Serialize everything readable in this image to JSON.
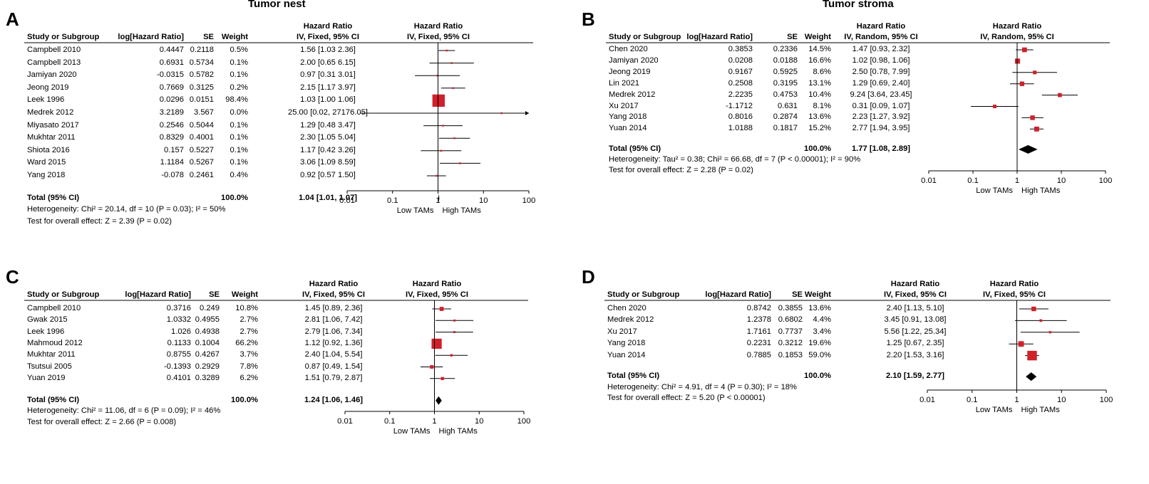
{
  "chart_data": [
    {
      "type": "forest",
      "letter": "A",
      "title": "Tumor nest",
      "headers": {
        "study": "Study or Subgroup",
        "loghr": "log[Hazard Ratio]",
        "se": "SE",
        "weight": "Weight",
        "hr_top": "Hazard Ratio",
        "hr_method": "IV, Fixed, 95% CI",
        "plot_top": "Hazard Ratio",
        "plot_method": "IV, Fixed, 95% CI"
      },
      "studies": [
        {
          "name": "Campbell 2010",
          "loghr": "0.4447",
          "se": "0.2118",
          "weight": "0.5%",
          "ci_text": "1.56 [1.03  2.36]",
          "hr": 1.56,
          "lo": 1.03,
          "hi": 2.36,
          "w": 0.5
        },
        {
          "name": "Campbell 2013",
          "loghr": "0.6931",
          "se": "0.5734",
          "weight": "0.1%",
          "ci_text": "2.00 [0.65  6.15]",
          "hr": 2.0,
          "lo": 0.65,
          "hi": 6.15,
          "w": 0.1
        },
        {
          "name": "Jamiyan 2020",
          "loghr": "-0.0315",
          "se": "0.5782",
          "weight": "0.1%",
          "ci_text": "0.97 [0.31  3.01]",
          "hr": 0.97,
          "lo": 0.31,
          "hi": 3.01,
          "w": 0.1
        },
        {
          "name": "Jeong 2019",
          "loghr": "0.7669",
          "se": "0.3125",
          "weight": "0.2%",
          "ci_text": "2.15 [1.17  3.97]",
          "hr": 2.15,
          "lo": 1.17,
          "hi": 3.97,
          "w": 0.2
        },
        {
          "name": "Leek 1996",
          "loghr": "0.0296",
          "se": "0.0151",
          "weight": "98.4%",
          "ci_text": "1.03 [1.00  1.06]",
          "hr": 1.03,
          "lo": 1.0,
          "hi": 1.06,
          "w": 98.4
        },
        {
          "name": "Medrek 2012",
          "loghr": "3.2189",
          "se": "3.567",
          "weight": "0.0%",
          "ci_text": "25.00 [0.02, 27176.05]",
          "hr": 25.0,
          "lo": 0.02,
          "hi": 27176.05,
          "w": 0.0
        },
        {
          "name": "Miyasato 2017",
          "loghr": "0.2546",
          "se": "0.5044",
          "weight": "0.1%",
          "ci_text": "1.29 [0.48  3.47]",
          "hr": 1.29,
          "lo": 0.48,
          "hi": 3.47,
          "w": 0.1
        },
        {
          "name": "Mukhtar 2011",
          "loghr": "0.8329",
          "se": "0.4001",
          "weight": "0.1%",
          "ci_text": "2.30 [1.05  5.04]",
          "hr": 2.3,
          "lo": 1.05,
          "hi": 5.04,
          "w": 0.1
        },
        {
          "name": "Shiota 2016",
          "loghr": "0.157",
          "se": "0.5227",
          "weight": "0.1%",
          "ci_text": "1.17 [0.42  3.26]",
          "hr": 1.17,
          "lo": 0.42,
          "hi": 3.26,
          "w": 0.1
        },
        {
          "name": "Ward 2015",
          "loghr": "1.1184",
          "se": "0.5267",
          "weight": "0.1%",
          "ci_text": "3.06 [1.09  8.59]",
          "hr": 3.06,
          "lo": 1.09,
          "hi": 8.59,
          "w": 0.1
        },
        {
          "name": "Yang 2018",
          "loghr": "-0.078",
          "se": "0.2461",
          "weight": "0.4%",
          "ci_text": "0.92 [0.57  1.50]",
          "hr": 0.92,
          "lo": 0.57,
          "hi": 1.5,
          "w": 0.4
        }
      ],
      "total": {
        "label": "Total (95% CI)",
        "weight": "100.0%",
        "ci_text": "1.04 [1.01, 1.07]",
        "hr": 1.04,
        "lo": 1.01,
        "hi": 1.07
      },
      "heterogeneity": "Heterogeneity: Chi² = 20.14, df = 10 (P = 0.03); I² = 50%",
      "overall_effect": "Test for overall effect: Z = 2.39 (P = 0.02)",
      "x_ticks": [
        "0.01",
        "0.1",
        "1",
        "10",
        "100"
      ],
      "xlabel_left": "Low TAMs",
      "xlabel_right": "High TAMs",
      "xscale": "log",
      "xlim": [
        0.01,
        100
      ]
    },
    {
      "type": "forest",
      "letter": "B",
      "title": "Tumor stroma",
      "headers": {
        "study": "Study or Subgroup",
        "loghr": "log[Hazard Ratio]",
        "se": "SE",
        "weight": "Weight",
        "hr_top": "Hazard Ratio",
        "hr_method": "IV, Random, 95% CI",
        "plot_top": "Hazard Ratio",
        "plot_method": "IV, Random, 95% CI"
      },
      "studies": [
        {
          "name": "Chen 2020",
          "loghr": "0.3853",
          "se": "0.2336",
          "weight": "14.5%",
          "ci_text": "1.47 [0.93, 2.32]",
          "hr": 1.47,
          "lo": 0.93,
          "hi": 2.32,
          "w": 14.5
        },
        {
          "name": "Jamiyan 2020",
          "loghr": "0.0208",
          "se": "0.0188",
          "weight": "16.6%",
          "ci_text": "1.02 [0.98, 1.06]",
          "hr": 1.02,
          "lo": 0.98,
          "hi": 1.06,
          "w": 16.6
        },
        {
          "name": "Jeong 2019",
          "loghr": "0.9167",
          "se": "0.5925",
          "weight": "8.6%",
          "ci_text": "2.50 [0.78, 7.99]",
          "hr": 2.5,
          "lo": 0.78,
          "hi": 7.99,
          "w": 8.6
        },
        {
          "name": "Lin 2021",
          "loghr": "0.2508",
          "se": "0.3195",
          "weight": "13.1%",
          "ci_text": "1.29 [0.69, 2.40]",
          "hr": 1.29,
          "lo": 0.69,
          "hi": 2.4,
          "w": 13.1
        },
        {
          "name": "Medrek 2012",
          "loghr": "2.2235",
          "se": "0.4753",
          "weight": "10.4%",
          "ci_text": "9.24 [3.64, 23.45]",
          "hr": 9.24,
          "lo": 3.64,
          "hi": 23.45,
          "w": 10.4
        },
        {
          "name": "Xu 2017",
          "loghr": "-1.1712",
          "se": "0.631",
          "weight": "8.1%",
          "ci_text": "0.31 [0.09, 1.07]",
          "hr": 0.31,
          "lo": 0.09,
          "hi": 1.07,
          "w": 8.1
        },
        {
          "name": "Yang 2018",
          "loghr": "0.8016",
          "se": "0.2874",
          "weight": "13.6%",
          "ci_text": "2.23 [1.27, 3.92]",
          "hr": 2.23,
          "lo": 1.27,
          "hi": 3.92,
          "w": 13.6
        },
        {
          "name": "Yuan 2014",
          "loghr": "1.0188",
          "se": "0.1817",
          "weight": "15.2%",
          "ci_text": "2.77 [1.94, 3.95]",
          "hr": 2.77,
          "lo": 1.94,
          "hi": 3.95,
          "w": 15.2
        }
      ],
      "total": {
        "label": "Total (95% CI)",
        "weight": "100.0%",
        "ci_text": "1.77 [1.08, 2.89]",
        "hr": 1.77,
        "lo": 1.08,
        "hi": 2.89
      },
      "heterogeneity": "Heterogeneity: Tau² = 0.38; Chi² = 66.68, df = 7 (P < 0.00001); I² = 90%",
      "overall_effect": "Test for overall effect: Z = 2.28 (P = 0.02)",
      "x_ticks": [
        "0.01",
        "0.1",
        "1",
        "10",
        "100"
      ],
      "xlabel_left": "Low TAMs",
      "xlabel_right": "High TAMs",
      "xscale": "log",
      "xlim": [
        0.01,
        100
      ]
    },
    {
      "type": "forest",
      "letter": "C",
      "title": "",
      "headers": {
        "study": "Study or Subgroup",
        "loghr": "log[Hazard Ratio]",
        "se": "SE",
        "weight": "Weight",
        "hr_top": "Hazard Ratio",
        "hr_method": "IV, Fixed, 95% CI",
        "plot_top": "Hazard Ratio",
        "plot_method": "IV, Fixed, 95% CI"
      },
      "studies": [
        {
          "name": "Campbell 2010",
          "loghr": "0.3716",
          "se": "0.249",
          "weight": "10.8%",
          "ci_text": "1.45 [0.89, 2.36]",
          "hr": 1.45,
          "lo": 0.89,
          "hi": 2.36,
          "w": 10.8
        },
        {
          "name": "Gwak 2015",
          "loghr": "1.0332",
          "se": "0.4955",
          "weight": "2.7%",
          "ci_text": "2.81 [1.06, 7.42]",
          "hr": 2.81,
          "lo": 1.06,
          "hi": 7.42,
          "w": 2.7
        },
        {
          "name": "Leek 1996",
          "loghr": "1.026",
          "se": "0.4938",
          "weight": "2.7%",
          "ci_text": "2.79 [1.06, 7.34]",
          "hr": 2.79,
          "lo": 1.06,
          "hi": 7.34,
          "w": 2.7
        },
        {
          "name": "Mahmoud 2012",
          "loghr": "0.1133",
          "se": "0.1004",
          "weight": "66.2%",
          "ci_text": "1.12 [0.92, 1.36]",
          "hr": 1.12,
          "lo": 0.92,
          "hi": 1.36,
          "w": 66.2
        },
        {
          "name": "Mukhtar 2011",
          "loghr": "0.8755",
          "se": "0.4267",
          "weight": "3.7%",
          "ci_text": "2.40 [1.04, 5.54]",
          "hr": 2.4,
          "lo": 1.04,
          "hi": 5.54,
          "w": 3.7
        },
        {
          "name": "Tsutsui 2005",
          "loghr": "-0.1393",
          "se": "0.2929",
          "weight": "7.8%",
          "ci_text": "0.87 [0.49, 1.54]",
          "hr": 0.87,
          "lo": 0.49,
          "hi": 1.54,
          "w": 7.8
        },
        {
          "name": "Yuan 2019",
          "loghr": "0.4101",
          "se": "0.3289",
          "weight": "6.2%",
          "ci_text": "1.51 [0.79, 2.87]",
          "hr": 1.51,
          "lo": 0.79,
          "hi": 2.87,
          "w": 6.2
        }
      ],
      "total": {
        "label": "Total (95% CI)",
        "weight": "100.0%",
        "ci_text": "1.24 [1.06, 1.46]",
        "hr": 1.24,
        "lo": 1.06,
        "hi": 1.46
      },
      "heterogeneity": "Heterogeneity: Chi² = 11.06, df = 6 (P = 0.09); I² = 46%",
      "overall_effect": "Test for overall effect: Z = 2.66 (P = 0.008)",
      "x_ticks": [
        "0.01",
        "0.1",
        "1",
        "10",
        "100"
      ],
      "xlabel_left": "Low TAMs",
      "xlabel_right": "High TAMs",
      "xscale": "log",
      "xlim": [
        0.01,
        100
      ]
    },
    {
      "type": "forest",
      "letter": "D",
      "title": "",
      "headers": {
        "study": "Study or Subgroup",
        "loghr": "log[Hazard Ratio]",
        "se": "SE",
        "weight": "Weight",
        "hr_top": "Hazard Ratio",
        "hr_method": "IV, Fixed, 95% CI",
        "plot_top": "Hazard Ratio",
        "plot_method": "IV, Fixed, 95% CI"
      },
      "studies": [
        {
          "name": "Chen 2020",
          "loghr": "0.8742",
          "se": "0.3855",
          "weight": "13.6%",
          "ci_text": "2.40 [1.13, 5.10]",
          "hr": 2.4,
          "lo": 1.13,
          "hi": 5.1,
          "w": 13.6
        },
        {
          "name": "Medrek 2012",
          "loghr": "1.2378",
          "se": "0.6802",
          "weight": "4.4%",
          "ci_text": "3.45 [0.91, 13.08]",
          "hr": 3.45,
          "lo": 0.91,
          "hi": 13.08,
          "w": 4.4
        },
        {
          "name": "Xu 2017",
          "loghr": "1.7161",
          "se": "0.7737",
          "weight": "3.4%",
          "ci_text": "5.56 [1.22, 25.34]",
          "hr": 5.56,
          "lo": 1.22,
          "hi": 25.34,
          "w": 3.4
        },
        {
          "name": "Yang 2018",
          "loghr": "0.2231",
          "se": "0.3212",
          "weight": "19.6%",
          "ci_text": "1.25 [0.67, 2.35]",
          "hr": 1.25,
          "lo": 0.67,
          "hi": 2.35,
          "w": 19.6
        },
        {
          "name": "Yuan 2014",
          "loghr": "0.7885",
          "se": "0.1853",
          "weight": "59.0%",
          "ci_text": "2.20 [1.53, 3.16]",
          "hr": 2.2,
          "lo": 1.53,
          "hi": 3.16,
          "w": 59.0
        }
      ],
      "total": {
        "label": "Total (95% CI)",
        "weight": "100.0%",
        "ci_text": "2.10 [1.59, 2.77]",
        "hr": 2.1,
        "lo": 1.59,
        "hi": 2.77
      },
      "heterogeneity": "Heterogeneity: Chi² = 4.91, df = 4 (P = 0.30); I² = 18%",
      "overall_effect": "Test for overall effect: Z = 5.20 (P < 0.00001)",
      "x_ticks": [
        "0.01",
        "0.1",
        "1",
        "10",
        "100"
      ],
      "xlabel_left": "Low TAMs",
      "xlabel_right": "High TAMs",
      "xscale": "log",
      "xlim": [
        0.01,
        100
      ]
    }
  ],
  "colors": {
    "marker": "#d0202a",
    "line": "#000000",
    "diamond": "#000000"
  }
}
